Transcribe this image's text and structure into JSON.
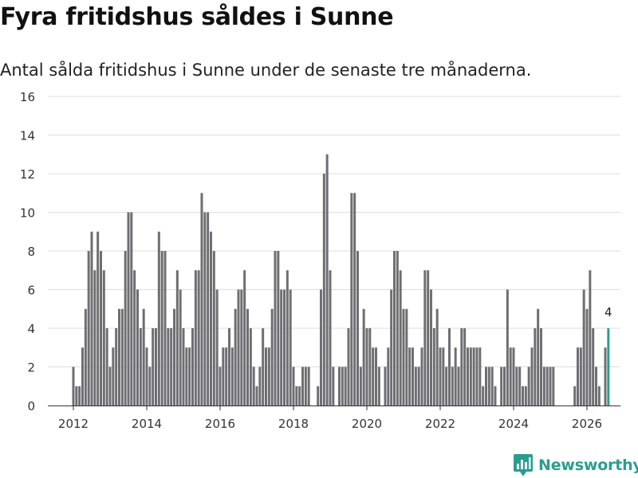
{
  "title": "Fyra fritidshus såldes i Sunne",
  "subtitle": "Antal sålda fritidshus i Sunne under de senaste tre månaderna.",
  "brand": {
    "name": "Newsworthy",
    "color": "#2a9d8f"
  },
  "colors": {
    "bar": "#6e6e73",
    "highlight": "#2a9d8f",
    "grid": "#dddddd"
  },
  "chart_data": {
    "type": "bar",
    "title": "Fyra fritidshus såldes i Sunne",
    "xlabel": "",
    "ylabel": "",
    "ylim": [
      0,
      16
    ],
    "yticks": [
      0,
      2,
      4,
      6,
      8,
      10,
      12,
      14,
      16
    ],
    "xticks": [
      "2012",
      "2014",
      "2016",
      "2018",
      "2020",
      "2022",
      "2024",
      "2026"
    ],
    "series": [
      {
        "name": "Antal sålda fritidshus",
        "start": "2012-01",
        "frequency": "monthly",
        "values": [
          2,
          1,
          1,
          3,
          5,
          8,
          9,
          7,
          9,
          8,
          7,
          4,
          2,
          3,
          4,
          5,
          5,
          8,
          10,
          10,
          7,
          6,
          4,
          5,
          3,
          2,
          4,
          4,
          9,
          8,
          8,
          4,
          4,
          5,
          7,
          6,
          4,
          3,
          3,
          4,
          7,
          7,
          11,
          10,
          10,
          9,
          8,
          6,
          2,
          3,
          3,
          4,
          3,
          5,
          6,
          6,
          7,
          5,
          4,
          2,
          1,
          2,
          4,
          3,
          3,
          5,
          8,
          8,
          6,
          6,
          7,
          6,
          2,
          1,
          1,
          2,
          2,
          2,
          0,
          0,
          1,
          6,
          12,
          13,
          7,
          2,
          0,
          2,
          2,
          2,
          4,
          11,
          11,
          8,
          2,
          5,
          4,
          4,
          3,
          3,
          2,
          0,
          2,
          3,
          6,
          8,
          8,
          7,
          5,
          5,
          3,
          3,
          2,
          2,
          3,
          7,
          7,
          6,
          4,
          5,
          3,
          3,
          2,
          4,
          2,
          3,
          2,
          4,
          4,
          3,
          3,
          3,
          3,
          3,
          1,
          2,
          2,
          2,
          1,
          0,
          2,
          2,
          6,
          3,
          3,
          2,
          2,
          1,
          1,
          2,
          3,
          4,
          5,
          4,
          2,
          2,
          2,
          2,
          0,
          0,
          0,
          0,
          0,
          0,
          1,
          3,
          3,
          6,
          5,
          7,
          4,
          2,
          1,
          0,
          3,
          4
        ]
      }
    ],
    "annotations": [
      {
        "period": "2026-03",
        "label": "4"
      }
    ],
    "highlight_last": true
  }
}
